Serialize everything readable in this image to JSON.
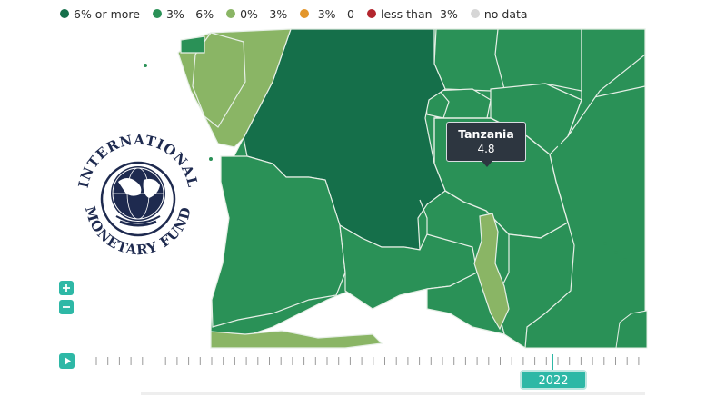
{
  "legend": [
    {
      "label": "6% or more",
      "color": "#156f4a"
    },
    {
      "label": "3% - 6%",
      "color": "#2a9157"
    },
    {
      "label": "0% - 3%",
      "color": "#8ab565"
    },
    {
      "label": "-3% - 0",
      "color": "#e3962b"
    },
    {
      "label": "less than -3%",
      "color": "#b3262e"
    },
    {
      "label": "no data",
      "color": "#d6d6d6"
    }
  ],
  "map": {
    "highlighted_region": "Tanzania",
    "colors": {
      "dark": "#156f4a",
      "mid": "#2a9157",
      "light": "#8ab565",
      "border": "#e6efe6"
    },
    "logo_text": {
      "top": "INTERNATIONAL",
      "bottom": "MONETARY FUND"
    }
  },
  "tooltip": {
    "name": "Tanzania",
    "value": "4.8"
  },
  "controls": {
    "zoom_in": "+",
    "zoom_out": "−"
  },
  "timeline": {
    "year": "2022"
  }
}
